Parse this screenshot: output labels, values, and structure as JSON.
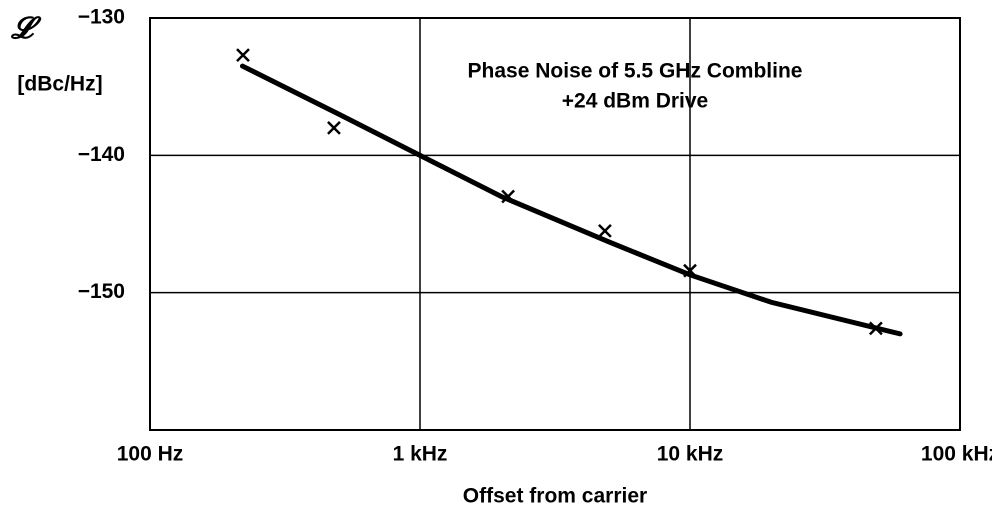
{
  "chart_data": {
    "type": "line",
    "title": [
      "Phase Noise of 5.5 GHz Combline",
      "+24 dBm Drive"
    ],
    "y_symbol": "𝓛",
    "y_label": "[dBc/Hz]",
    "x_label": "Offset from carrier",
    "x_log": true,
    "grid": true,
    "color": "#000000",
    "xlim": [
      100,
      100000
    ],
    "xticks": [
      {
        "value": 100,
        "label": "100 Hz"
      },
      {
        "value": 1000,
        "label": "1 kHz"
      },
      {
        "value": 10000,
        "label": "10 kHz"
      },
      {
        "value": 100000,
        "label": "100 kHz"
      }
    ],
    "ylim": [
      -160,
      -130
    ],
    "yticks": [
      {
        "value": -130,
        "label": "−130"
      },
      {
        "value": -140,
        "label": "−140"
      },
      {
        "value": -150,
        "label": "−150"
      }
    ],
    "series": [
      {
        "kind": "line",
        "x": [
          220,
          500,
          1000,
          2000,
          5000,
          10000,
          20000,
          60000
        ],
        "values": [
          -133.5,
          -137,
          -140,
          -143,
          -146.3,
          -148.7,
          -150.7,
          -153
        ]
      },
      {
        "kind": "points",
        "x": [
          221,
          480,
          2120,
          4840,
          10000,
          48800
        ],
        "values": [
          -132.7,
          -138,
          -143,
          -145.5,
          -148.4,
          -152.6
        ]
      }
    ]
  }
}
